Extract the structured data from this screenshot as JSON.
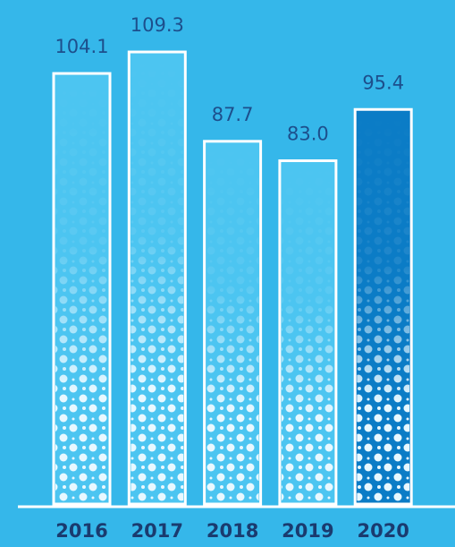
{
  "chart_data": {
    "type": "bar",
    "categories": [
      "2016",
      "2017",
      "2018",
      "2019",
      "2020"
    ],
    "values": [
      104.1,
      109.3,
      87.7,
      83.0,
      95.4
    ],
    "value_labels": [
      "104.1",
      "109.3",
      "87.7",
      "83.0",
      "95.4"
    ],
    "colors": [
      "#4cc5f1",
      "#4cc5f1",
      "#4cc5f1",
      "#4cc5f1",
      "#0b7cc6"
    ]
  }
}
